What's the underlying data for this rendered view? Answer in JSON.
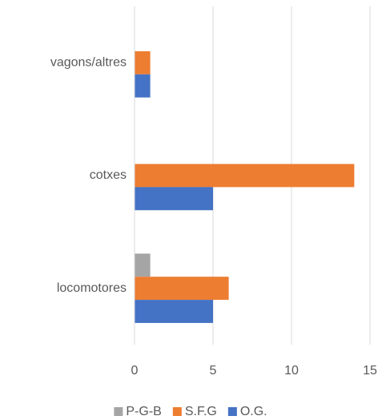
{
  "chart_data": {
    "type": "hbar",
    "categories": [
      "locomotores",
      "cotxes",
      "vagons/altres"
    ],
    "series": [
      {
        "name": "P-G-B",
        "color": "#a5a5a5",
        "values": [
          1,
          0,
          0
        ]
      },
      {
        "name": "S.F.G",
        "color": "#ed7d31",
        "values": [
          6,
          14,
          1
        ]
      },
      {
        "name": "O.G.",
        "color": "#4472c4",
        "values": [
          5,
          5,
          1
        ]
      }
    ],
    "xlim": [
      0,
      15
    ],
    "xticks": [
      0,
      5,
      10,
      15
    ],
    "grid": true,
    "legend": "bottom"
  }
}
